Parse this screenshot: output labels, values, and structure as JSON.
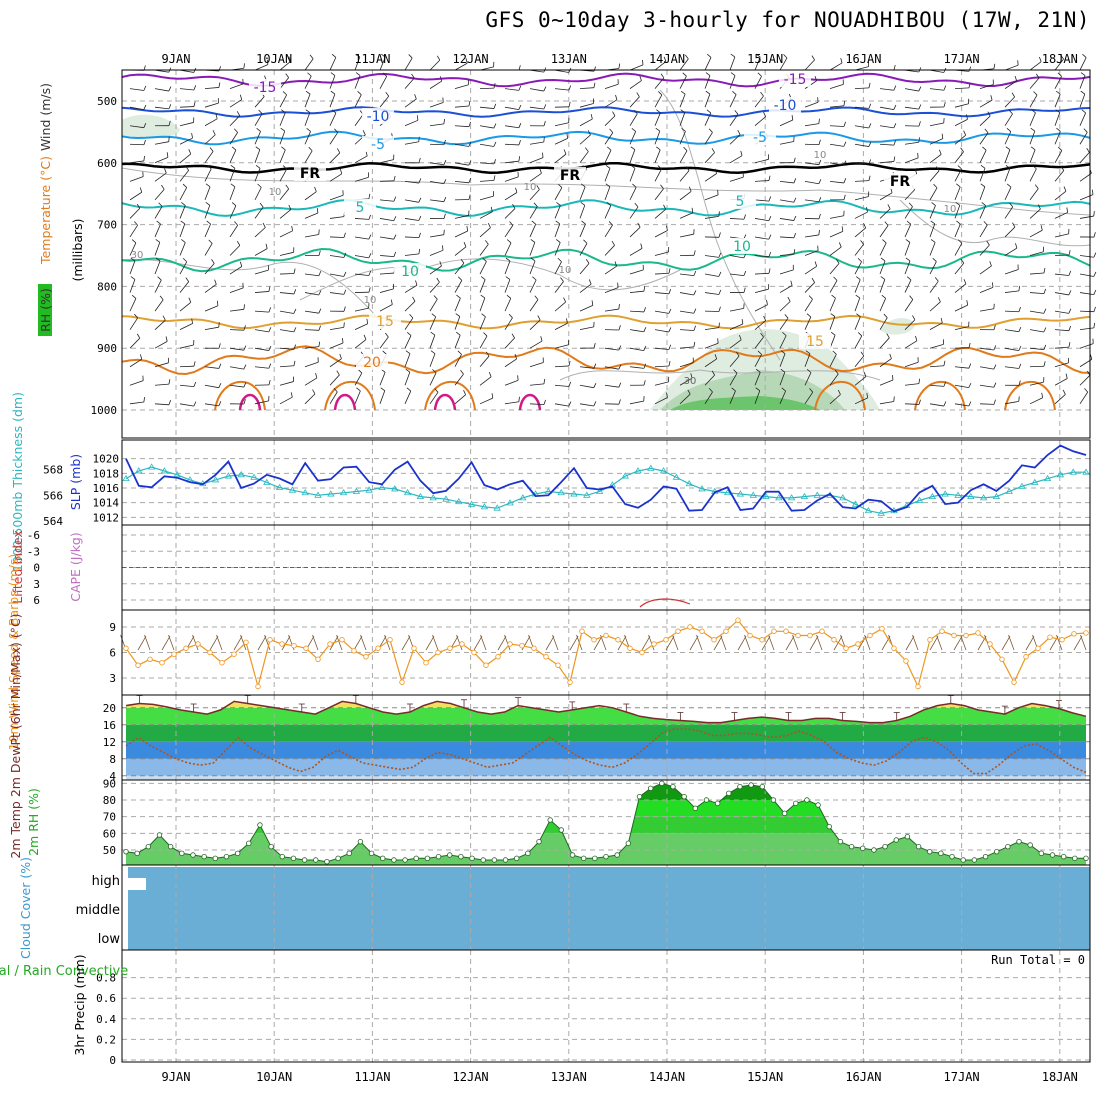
{
  "title": "GFS 0~10day 3-hourly for NOUADHIBOU (17W, 21N)",
  "dates": [
    "9JAN",
    "10JAN",
    "11JAN",
    "12JAN",
    "13JAN",
    "14JAN",
    "15JAN",
    "16JAN",
    "17JAN",
    "18JAN"
  ],
  "colors": {
    "grid": "#aaaaaa",
    "temp_neg15": "#8a1ab8",
    "temp_neg10": "#1a4fd6",
    "temp_neg5": "#1a9ae6",
    "freezing": "#000000",
    "temp_5": "#1ab8b8",
    "temp_10": "#1ab88a",
    "temp_15": "#e0a030",
    "temp_20": "#e07a1a",
    "temp_25": "#d01a8a",
    "slp": "#1a33cc",
    "thickness": "#2ab8c0",
    "wind": "#f0961e",
    "rh": "#22aa22",
    "cloud": "#6aaed6",
    "li": "#d03030"
  },
  "chart_data": [
    {
      "type": "contour",
      "panel": "upper-air",
      "ylabels": [
        "Wind (m/s)",
        "Temperature (°C)",
        "RH (%)"
      ],
      "yaxis_title": "(millibars)",
      "yticks": [
        500,
        600,
        700,
        800,
        900,
        1000
      ],
      "ylim": [
        1000,
        450
      ],
      "contour_labels": [
        "-15",
        "-10",
        "-5",
        "FR",
        "5",
        "10",
        "15",
        "20"
      ],
      "extra_labels": [
        "10",
        "10",
        "10",
        "10",
        "10",
        "10",
        "30"
      ]
    },
    {
      "type": "line",
      "panel": "slp-thickness",
      "ylabel_left": "1000-500mb Thickness (dm)",
      "ylabel_right": "SLP (mb)",
      "yticks_left": [
        564,
        566,
        568
      ],
      "yticks_right": [
        1012,
        1014,
        1016,
        1018,
        1020
      ],
      "slp_range": [
        1011.5,
        1022
      ],
      "thickness_range": [
        564,
        570
      ],
      "slp": [
        1020,
        1016.3,
        1016.1,
        1017.6,
        1017.4,
        1016.8,
        1016.5,
        1017.8,
        1019.6,
        1016,
        1016.6,
        1017.8,
        1017.3,
        1016.5,
        1019.4,
        1017,
        1017.2,
        1018.8,
        1018.9,
        1016.8,
        1016.5,
        1018.5,
        1019.6,
        1017,
        1015.3,
        1015.6,
        1017.3,
        1019.5,
        1016.4,
        1015.8,
        1016.5,
        1017,
        1014.9,
        1015,
        1016.8,
        1018.7,
        1016,
        1015.8,
        1016.2,
        1013.8,
        1013.3,
        1014.4,
        1016.2,
        1015.9,
        1012.9,
        1013,
        1015.4,
        1016.1,
        1013,
        1013.2,
        1015.5,
        1015.5,
        1012.9,
        1013,
        1014.3,
        1015.2,
        1013.4,
        1013.2,
        1014.4,
        1014.2,
        1012.8,
        1013.4,
        1015.4,
        1016.3,
        1013.8,
        1014,
        1015.7,
        1016.5,
        1015.6,
        1017,
        1019.1,
        1018.8,
        1020.5,
        1021.8,
        1021,
        1020.5
      ],
      "thickness": [
        567.3,
        567.9,
        568.2,
        567.9,
        567.6,
        567.2,
        566.9,
        567.2,
        567.5,
        567.6,
        567.4,
        567,
        566.6,
        566.4,
        566.2,
        566,
        566.1,
        566.2,
        566.3,
        566.4,
        566.6,
        566.5,
        566.2,
        565.9,
        565.8,
        565.7,
        565.5,
        565.3,
        565.1,
        565,
        565.4,
        565.8,
        566.1,
        566.3,
        566.2,
        566.1,
        566,
        566.3,
        566.8,
        567.5,
        567.9,
        568.1,
        567.9,
        567.4,
        566.9,
        566.5,
        566.3,
        566.2,
        566.1,
        566,
        565.9,
        565.8,
        565.8,
        565.9,
        566,
        566,
        565.8,
        565.3,
        564.8,
        564.6,
        564.8,
        565.2,
        565.6,
        565.9,
        566.1,
        566,
        565.9,
        565.8,
        565.9,
        566.3,
        566.7,
        567,
        567.3,
        567.6,
        567.8,
        567.8
      ]
    },
    {
      "type": "line",
      "panel": "li-cape",
      "ylabel_left": "Lifted Index",
      "ylabel_right": "CAPE (J/kg)",
      "yticks": [
        "-6",
        "-3",
        "0",
        "3",
        "6"
      ],
      "ylim": [
        -6,
        6
      ]
    },
    {
      "type": "line",
      "panel": "wind10m",
      "ylabel": "10m Wind Speed & Barbs (m/s)",
      "yticks": [
        3,
        6,
        9
      ],
      "ylim": [
        1,
        11
      ],
      "values": [
        6.5,
        4.5,
        5.2,
        4.8,
        5.8,
        6.5,
        7,
        6,
        4.8,
        5.8,
        7.2,
        2,
        7.5,
        7,
        6.8,
        6.5,
        5.2,
        7,
        7.5,
        6.2,
        5.5,
        6.5,
        7.5,
        2.5,
        6.5,
        4.8,
        6,
        6.5,
        7,
        6,
        4.5,
        5.5,
        7,
        6.8,
        6.5,
        5.5,
        4.5,
        2.5,
        8.5,
        7.5,
        8,
        7.5,
        6.5,
        6,
        7,
        7.5,
        8.5,
        9,
        8.5,
        7.5,
        8.5,
        9.8,
        8,
        7.5,
        8.5,
        8.5,
        8,
        8,
        8.5,
        7.5,
        6.5,
        7,
        8,
        8.8,
        6.5,
        5,
        2,
        7.5,
        8.5,
        8,
        8,
        8.3,
        7,
        5.2,
        2.5,
        5.5,
        6.5,
        7.8,
        7.5,
        8.2,
        8.3
      ]
    },
    {
      "type": "area",
      "panel": "temp2m",
      "ylabel": "2m Temp 2m DewPt (6hr Min/Max) (°C)",
      "yticks": [
        4,
        8,
        12,
        16,
        20
      ],
      "ylim": [
        3,
        23
      ],
      "temp": [
        20.5,
        21,
        20.8,
        20.2,
        19.5,
        19,
        18.5,
        19.5,
        21.5,
        21,
        20.5,
        20,
        19.5,
        19,
        18.5,
        20,
        21.5,
        21,
        20,
        19,
        18.5,
        19,
        20.5,
        21.5,
        21,
        20,
        19,
        18.5,
        19,
        20.5,
        20,
        19.5,
        19,
        19.5,
        20,
        20.5,
        20,
        19,
        18,
        17.5,
        17.2,
        17,
        16.8,
        16.5,
        16.5,
        17,
        17.5,
        17.8,
        17.5,
        17,
        17,
        17.5,
        17.5,
        17,
        16.8,
        16.5,
        16.5,
        17,
        18,
        19.5,
        20.5,
        21,
        20.5,
        19.5,
        19,
        18.5,
        20,
        21,
        20.5,
        19.8,
        18.8,
        18
      ],
      "dewpt": [
        11,
        13,
        11,
        9.5,
        8,
        7,
        6.5,
        7,
        10,
        13,
        10.5,
        9,
        7.5,
        6,
        5,
        6,
        8.5,
        10,
        8.5,
        7,
        6.5,
        6,
        5.5,
        6,
        8,
        9.5,
        9,
        8,
        7,
        6,
        6.5,
        7,
        9,
        11,
        13,
        11,
        9,
        7.5,
        6.5,
        6,
        7,
        9,
        11.5,
        14,
        15,
        15,
        14.5,
        13.5,
        13.5,
        14,
        14,
        13.5,
        13,
        13.5,
        14.5,
        13.5,
        12,
        9.5,
        8,
        7,
        6.5,
        7.5,
        9.5,
        12,
        13,
        12,
        10,
        7,
        4.5,
        4.5,
        6.5,
        9,
        11,
        11.5,
        10,
        8,
        6,
        4.8
      ]
    },
    {
      "type": "area",
      "panel": "rh2m",
      "ylabel": "2m RH (%)",
      "yticks": [
        50,
        60,
        70,
        80,
        90
      ],
      "ylim": [
        41,
        92
      ],
      "values": [
        49,
        48,
        52,
        59,
        52,
        48,
        47,
        46,
        45,
        46,
        48,
        54,
        65,
        52,
        46,
        45,
        44,
        44,
        43,
        45,
        48,
        55,
        48,
        45,
        44,
        44,
        45,
        45,
        46,
        47,
        46,
        45,
        44,
        44,
        44,
        45,
        48,
        55,
        68,
        62,
        47,
        45,
        45,
        46,
        47,
        54,
        82,
        87,
        90,
        88,
        82,
        75,
        80,
        78,
        84,
        88,
        89,
        88,
        80,
        72,
        78,
        80,
        77,
        64,
        55,
        52,
        51,
        50,
        52,
        56,
        58,
        52,
        49,
        48,
        46,
        44,
        44,
        46,
        49,
        52,
        55,
        53,
        48,
        47,
        46,
        45,
        45
      ]
    },
    {
      "type": "area",
      "panel": "cloud",
      "ylabel": "Cloud Cover (%)",
      "levels": [
        "high",
        "middle",
        "low"
      ]
    },
    {
      "type": "bar",
      "panel": "precip",
      "ylabel_left": "Total / Rain Convective",
      "ylabel": "3hr Precip (mm)",
      "yticks": [
        "0",
        "0.2",
        "0.4",
        "0.6",
        "0.8"
      ],
      "ylim": [
        0,
        1
      ],
      "run_total": "Run Total = 0"
    }
  ]
}
